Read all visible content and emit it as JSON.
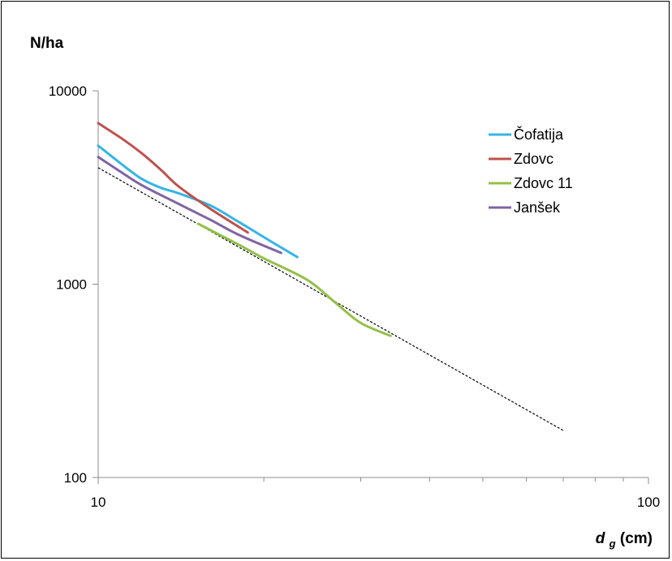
{
  "chart_data": {
    "type": "line",
    "title": "",
    "ylabel": "N/ha",
    "xlabel": {
      "main": "d",
      "sub": "g",
      "unit": " (cm)"
    },
    "xscale": "log",
    "yscale": "log",
    "xlim": [
      10,
      100
    ],
    "ylim": [
      100,
      10000
    ],
    "x_tick_labels": [
      "10",
      "100"
    ],
    "y_tick_labels": [
      "100",
      "1000",
      "10000"
    ],
    "grid": false,
    "legend_position": "top-right",
    "series": [
      {
        "name": "Čofatija",
        "color": "#33b5e5",
        "x": [
          10,
          11,
          12,
          13,
          14,
          16,
          18,
          20,
          23
        ],
        "y": [
          5200,
          4200,
          3500,
          3150,
          2950,
          2550,
          2100,
          1750,
          1380
        ]
      },
      {
        "name": "Zdovc",
        "color": "#c0504d",
        "x": [
          10,
          11,
          12,
          13,
          14,
          16,
          18.7
        ],
        "y": [
          6800,
          5700,
          4750,
          3900,
          3200,
          2450,
          1850
        ]
      },
      {
        "name": "Zdovc 11",
        "color": "#92c047",
        "x": [
          15.2,
          18,
          20,
          24,
          27,
          30,
          34
        ],
        "y": [
          2050,
          1600,
          1360,
          1050,
          800,
          630,
          540
        ]
      },
      {
        "name": "Janšek",
        "color": "#8064a2",
        "x": [
          10,
          11,
          12,
          14,
          16,
          18,
          21.5
        ],
        "y": [
          4550,
          3800,
          3250,
          2600,
          2150,
          1800,
          1450
        ]
      },
      {
        "name": "",
        "color": "#000000",
        "dashed": true,
        "x": [
          10,
          70
        ],
        "y": [
          4000,
          175
        ]
      }
    ]
  }
}
